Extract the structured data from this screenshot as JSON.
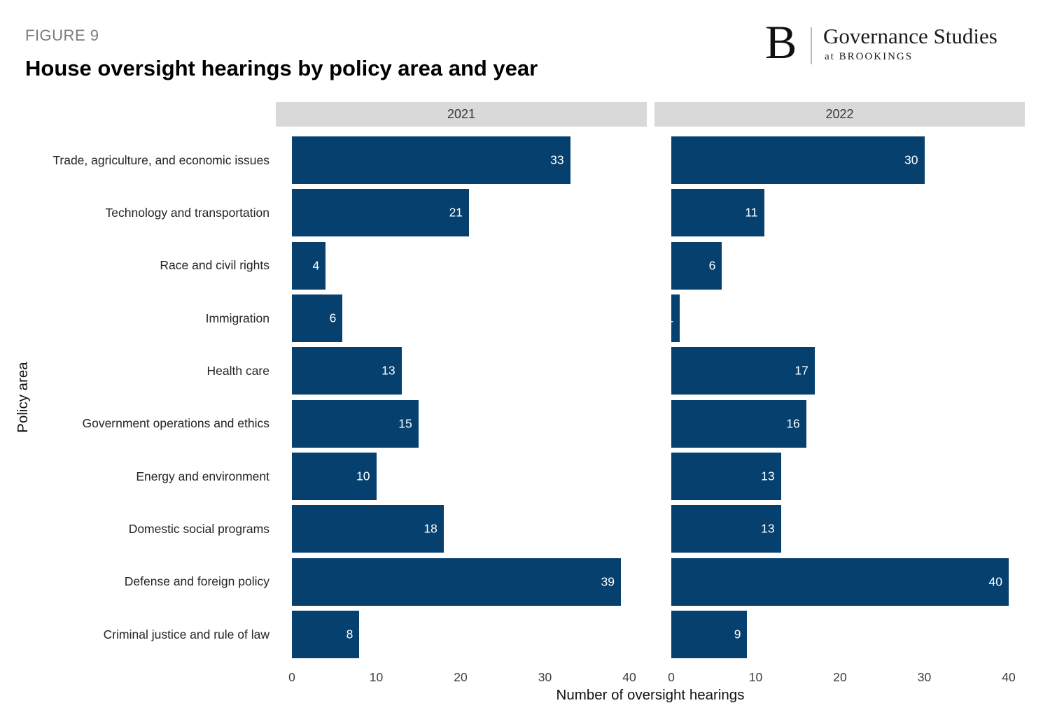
{
  "figure_label": "FIGURE 9",
  "title": "House oversight hearings by policy area and year",
  "logo": {
    "monogram": "B",
    "name": "Governance Studies",
    "subtitle": "at BROOKINGS"
  },
  "chart_data": {
    "type": "bar",
    "orientation": "horizontal",
    "facets": [
      "2021",
      "2022"
    ],
    "categories": [
      "Trade, agriculture, and economic issues",
      "Technology and transportation",
      "Race and civil rights",
      "Immigration",
      "Health care",
      "Government operations and ethics",
      "Energy and environment",
      "Domestic social programs",
      "Defense and foreign policy",
      "Criminal justice and rule of law"
    ],
    "series": [
      {
        "name": "2021",
        "values": [
          33,
          21,
          4,
          6,
          13,
          15,
          10,
          18,
          39,
          8
        ]
      },
      {
        "name": "2022",
        "values": [
          30,
          11,
          6,
          1,
          17,
          16,
          13,
          13,
          40,
          9
        ]
      }
    ],
    "xlabel": "Number of oversight hearings",
    "ylabel": "Policy area",
    "xlim": [
      0,
      40
    ],
    "xticks": [
      0,
      10,
      20,
      30,
      40
    ],
    "grid": false,
    "legend": "none",
    "value_labels": "inside-end, white",
    "bar_color": "#05406F",
    "strip_color": "#D9D9D9",
    "value_label_color": "#FFFFFF"
  }
}
